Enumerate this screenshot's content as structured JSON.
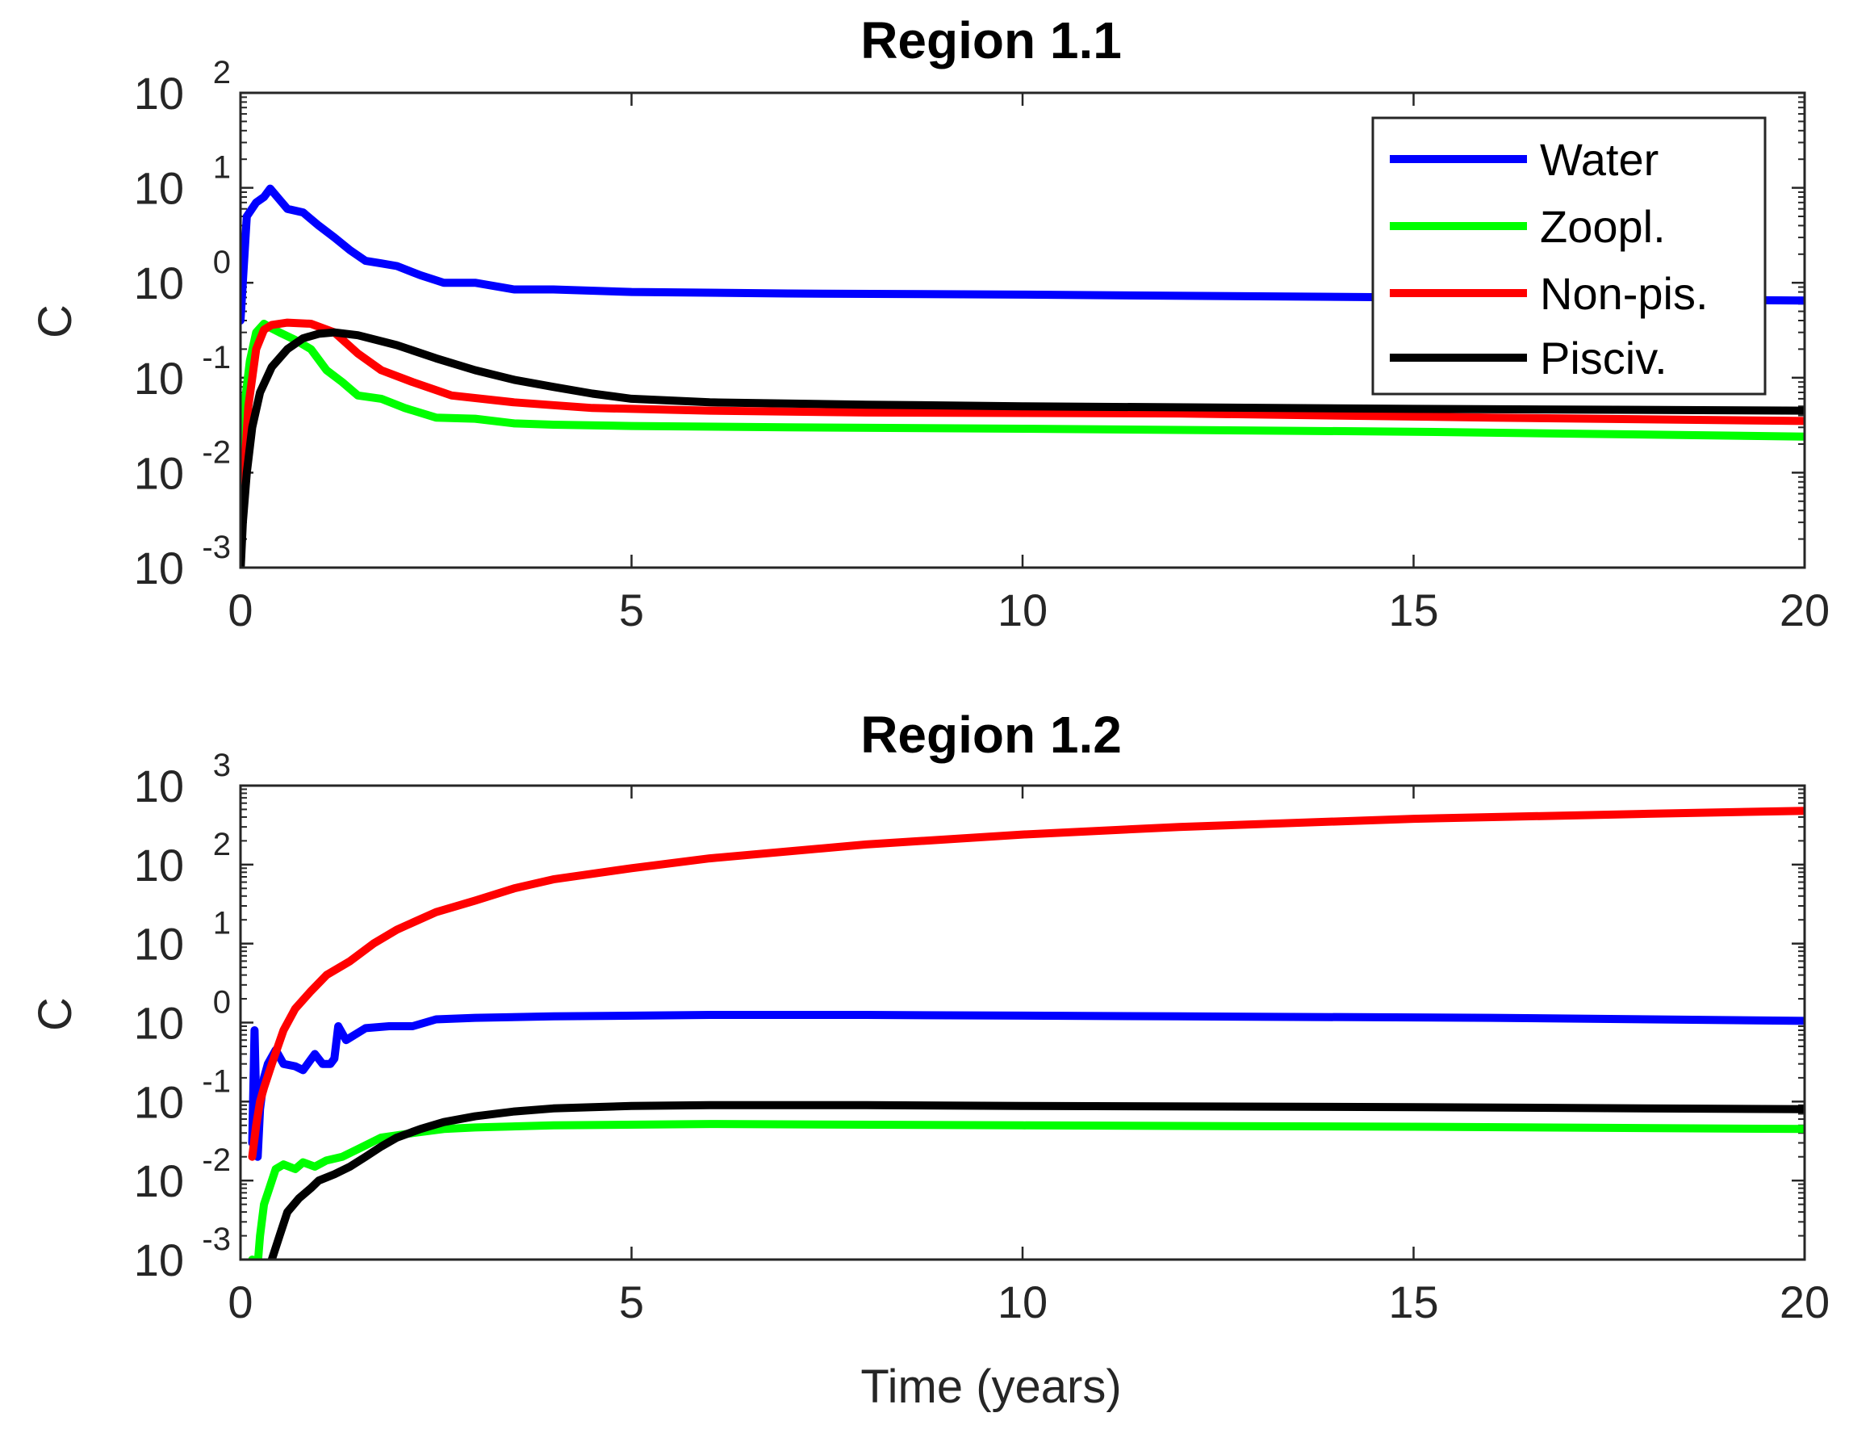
{
  "chart_data": [
    {
      "type": "line",
      "title": "Region 1.1",
      "xlabel": "",
      "ylabel": "C",
      "xlim": [
        0,
        20
      ],
      "ylim": [
        0.001,
        100
      ],
      "yscale": "log",
      "xticks": [
        "0",
        "5",
        "10",
        "15",
        "20"
      ],
      "yticks": [
        {
          "base": "10",
          "exp": "-3"
        },
        {
          "base": "10",
          "exp": "-2"
        },
        {
          "base": "10",
          "exp": "-1"
        },
        {
          "base": "10",
          "exp": "0"
        },
        {
          "base": "10",
          "exp": "1"
        },
        {
          "base": "10",
          "exp": "2"
        }
      ],
      "legend": {
        "location": "top-right",
        "entries": [
          "Water",
          "Zoopl.",
          "Non-pis.",
          "Pisciv."
        ]
      },
      "series": [
        {
          "name": "Water",
          "color": "#0000ff",
          "x": [
            0,
            0.08,
            0.2,
            0.3,
            0.38,
            0.5,
            0.6,
            0.8,
            1.0,
            1.2,
            1.4,
            1.6,
            1.8,
            2.0,
            2.3,
            2.6,
            3.0,
            3.5,
            4.0,
            5.0,
            7.0,
            10.0,
            15.0,
            20.0
          ],
          "y": [
            0.4,
            5.0,
            7.0,
            8.0,
            9.8,
            7.5,
            6.0,
            5.5,
            4.0,
            3.0,
            2.2,
            1.7,
            1.6,
            1.5,
            1.2,
            1.0,
            1.0,
            0.85,
            0.85,
            0.8,
            0.77,
            0.75,
            0.7,
            0.65
          ]
        },
        {
          "name": "Zoopl.",
          "color": "#00ff00",
          "x": [
            0,
            0.05,
            0.12,
            0.2,
            0.3,
            0.4,
            0.5,
            0.7,
            0.9,
            1.1,
            1.3,
            1.5,
            1.8,
            2.1,
            2.5,
            3.0,
            3.5,
            4.0,
            5.0,
            7.0,
            10.0,
            15.0,
            20.0
          ],
          "y": [
            0.002,
            0.05,
            0.15,
            0.3,
            0.37,
            0.33,
            0.3,
            0.25,
            0.2,
            0.12,
            0.09,
            0.065,
            0.06,
            0.048,
            0.038,
            0.037,
            0.033,
            0.032,
            0.031,
            0.03,
            0.029,
            0.027,
            0.024
          ]
        },
        {
          "name": "Non-pis.",
          "color": "#ff0000",
          "x": [
            0,
            0.05,
            0.1,
            0.2,
            0.3,
            0.4,
            0.6,
            0.9,
            1.2,
            1.5,
            1.8,
            2.2,
            2.7,
            3.5,
            4.5,
            6.0,
            8.0,
            12.0,
            16.0,
            20.0
          ],
          "y": [
            0.002,
            0.01,
            0.05,
            0.2,
            0.32,
            0.36,
            0.38,
            0.37,
            0.3,
            0.18,
            0.12,
            0.09,
            0.065,
            0.055,
            0.048,
            0.045,
            0.043,
            0.042,
            0.038,
            0.035
          ]
        },
        {
          "name": "Pisciv.",
          "color": "#000000",
          "x": [
            0,
            0.03,
            0.08,
            0.15,
            0.25,
            0.4,
            0.6,
            0.8,
            1.0,
            1.2,
            1.5,
            2.0,
            2.5,
            3.0,
            3.5,
            4.0,
            4.5,
            5.0,
            6.0,
            8.0,
            10.0,
            15.0,
            20.0
          ],
          "y": [
            0.0009,
            0.003,
            0.01,
            0.03,
            0.07,
            0.13,
            0.2,
            0.26,
            0.29,
            0.3,
            0.28,
            0.22,
            0.16,
            0.12,
            0.095,
            0.08,
            0.068,
            0.06,
            0.055,
            0.052,
            0.05,
            0.047,
            0.045
          ]
        }
      ]
    },
    {
      "type": "line",
      "title": "Region 1.2",
      "xlabel": "Time (years)",
      "ylabel": "C",
      "xlim": [
        0,
        20
      ],
      "ylim": [
        0.001,
        1000
      ],
      "yscale": "log",
      "xticks": [
        "0",
        "5",
        "10",
        "15",
        "20"
      ],
      "yticks": [
        {
          "base": "10",
          "exp": "-3"
        },
        {
          "base": "10",
          "exp": "-2"
        },
        {
          "base": "10",
          "exp": "-1"
        },
        {
          "base": "10",
          "exp": "0"
        },
        {
          "base": "10",
          "exp": "1"
        },
        {
          "base": "10",
          "exp": "2"
        },
        {
          "base": "10",
          "exp": "3"
        }
      ],
      "series": [
        {
          "name": "Water",
          "color": "#0000ff",
          "x": [
            0.15,
            0.18,
            0.2,
            0.22,
            0.25,
            0.3,
            0.35,
            0.45,
            0.55,
            0.7,
            0.8,
            0.95,
            1.05,
            1.15,
            1.2,
            1.25,
            1.35,
            1.6,
            1.9,
            2.2,
            2.5,
            3.0,
            4.0,
            6.0,
            8.0,
            12.0,
            16.0,
            20.0
          ],
          "y": [
            0.03,
            0.8,
            0.1,
            0.02,
            0.08,
            0.2,
            0.3,
            0.45,
            0.3,
            0.28,
            0.25,
            0.4,
            0.3,
            0.3,
            0.35,
            0.9,
            0.6,
            0.85,
            0.9,
            0.9,
            1.1,
            1.15,
            1.2,
            1.25,
            1.25,
            1.2,
            1.15,
            1.05
          ]
        },
        {
          "name": "Zoopl.",
          "color": "#00ff00",
          "x": [
            0.15,
            0.2,
            0.25,
            0.3,
            0.35,
            0.45,
            0.55,
            0.7,
            0.8,
            0.95,
            1.1,
            1.3,
            1.5,
            1.8,
            2.2,
            2.6,
            3.0,
            4.0,
            6.0,
            10.0,
            15.0,
            20.0
          ],
          "y": [
            0.001,
            0.0005,
            0.002,
            0.005,
            0.007,
            0.014,
            0.016,
            0.014,
            0.017,
            0.015,
            0.018,
            0.02,
            0.025,
            0.035,
            0.04,
            0.045,
            0.047,
            0.05,
            0.052,
            0.05,
            0.048,
            0.045
          ]
        },
        {
          "name": "Non-pis.",
          "color": "#ff0000",
          "x": [
            0.15,
            0.2,
            0.25,
            0.3,
            0.4,
            0.55,
            0.7,
            0.9,
            1.1,
            1.4,
            1.7,
            2.0,
            2.5,
            3.0,
            3.5,
            4.0,
            5.0,
            6.0,
            8.0,
            10.0,
            12.0,
            15.0,
            18.0,
            20.0
          ],
          "y": [
            0.02,
            0.05,
            0.1,
            0.15,
            0.3,
            0.8,
            1.5,
            2.5,
            4.0,
            6.0,
            10.0,
            15.0,
            25.0,
            35.0,
            50.0,
            65.0,
            90.0,
            120.0,
            180.0,
            240.0,
            300.0,
            380.0,
            440.0,
            480.0
          ]
        },
        {
          "name": "Pisciv.",
          "color": "#000000",
          "x": [
            0.3,
            0.4,
            0.5,
            0.6,
            0.75,
            0.9,
            1.0,
            1.2,
            1.4,
            1.6,
            1.8,
            2.0,
            2.3,
            2.6,
            3.0,
            3.5,
            4.0,
            5.0,
            6.0,
            8.0,
            10.0,
            15.0,
            20.0
          ],
          "y": [
            0.0006,
            0.001,
            0.002,
            0.004,
            0.006,
            0.008,
            0.01,
            0.012,
            0.015,
            0.02,
            0.027,
            0.035,
            0.045,
            0.055,
            0.065,
            0.075,
            0.082,
            0.088,
            0.09,
            0.09,
            0.088,
            0.085,
            0.08
          ]
        }
      ]
    }
  ]
}
